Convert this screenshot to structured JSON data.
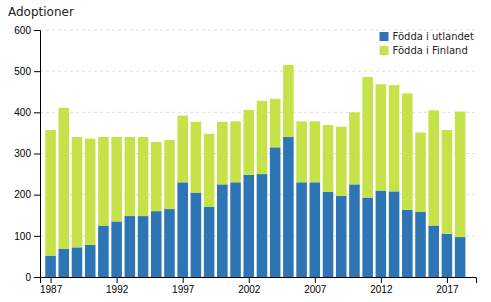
{
  "chart_data": {
    "type": "bar",
    "stacked": true,
    "title": "Adoptioner",
    "x": [
      1987,
      1988,
      1989,
      1990,
      1991,
      1992,
      1993,
      1994,
      1995,
      1996,
      1997,
      1998,
      1999,
      2000,
      2001,
      2002,
      2003,
      2004,
      2005,
      2006,
      2007,
      2008,
      2009,
      2010,
      2011,
      2012,
      2013,
      2014,
      2015,
      2016,
      2017,
      2018
    ],
    "series": [
      {
        "name": "Födda i utlandet",
        "color": "#2E75B6",
        "values": [
          52,
          68,
          72,
          78,
          125,
          135,
          148,
          148,
          160,
          165,
          230,
          205,
          170,
          225,
          230,
          248,
          250,
          315,
          340,
          230,
          230,
          207,
          197,
          225,
          193,
          210,
          208,
          163,
          158,
          125,
          105,
          97
        ]
      },
      {
        "name": "Födda i Finland",
        "color": "#C5E349",
        "values": [
          305,
          343,
          268,
          258,
          215,
          205,
          192,
          192,
          168,
          168,
          162,
          172,
          178,
          152,
          148,
          158,
          178,
          118,
          175,
          148,
          148,
          162,
          168,
          175,
          293,
          258,
          258,
          283,
          193,
          280,
          252,
          305
        ]
      }
    ],
    "xlim": [
      1986.2,
      2019.2
    ],
    "xticks": [
      1987,
      1992,
      1997,
      2002,
      2007,
      2012,
      2017
    ],
    "ylim": [
      0,
      600
    ],
    "yticks": [
      0,
      100,
      200,
      300,
      400,
      500,
      600
    ],
    "grid": true,
    "legend": "upper right"
  }
}
